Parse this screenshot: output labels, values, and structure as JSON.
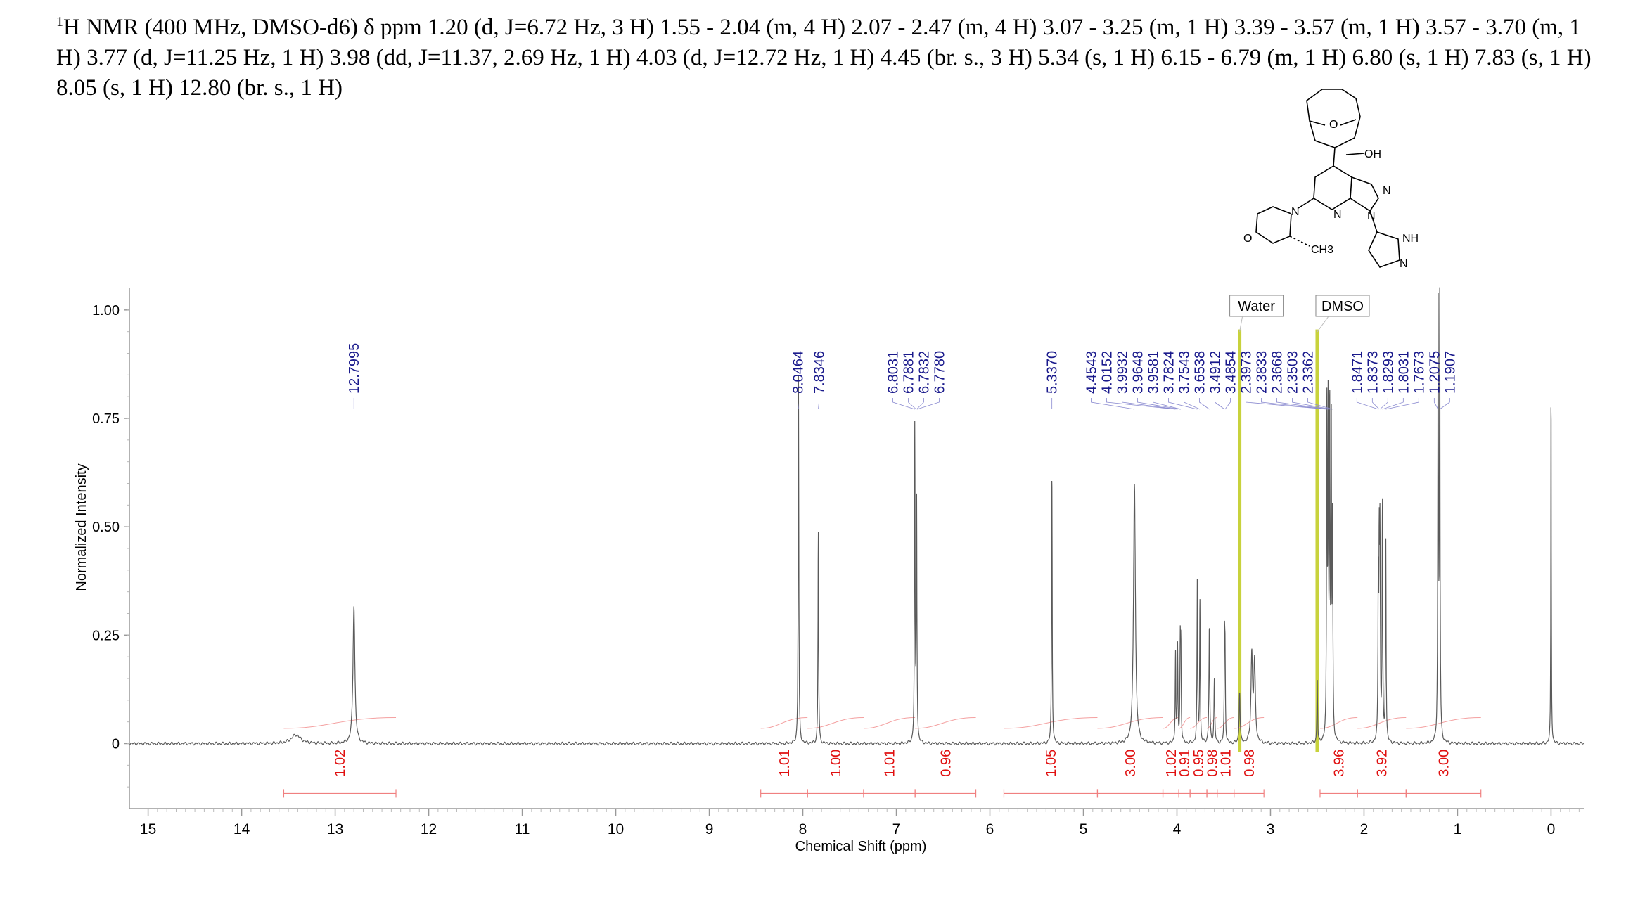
{
  "header": {
    "prefix_sup": "1",
    "text": "H NMR (400 MHz, DMSO-d6) δ ppm 1.20 (d, J=6.72 Hz, 3 H) 1.55 - 2.04 (m, 4 H) 2.07 - 2.47 (m, 4 H) 3.07 - 3.25 (m, 1 H) 3.39 - 3.57 (m, 1 H) 3.57 - 3.70 (m, 1 H) 3.77 (d, J=11.25 Hz, 1 H) 3.98 (dd, J=11.37, 2.69 Hz, 1 H) 4.03 (d, J=12.72 Hz, 1 H) 4.45 (br. s., 3 H) 5.34 (s, 1 H) 6.15 - 6.79 (m, 1 H) 6.80 (s, 1 H) 7.83 (s, 1 H) 8.05 (s, 1 H) 12.80 (br. s., 1 H)"
  },
  "structure_labels": {
    "o_top": "O",
    "oh": "OH",
    "n1": "N",
    "n2": "N",
    "n3": "N",
    "n4": "N",
    "nh": "NH",
    "n5": "N",
    "o_morph": "O",
    "ch3": "CH3"
  },
  "solvent_labels": [
    "Water",
    "DMSO"
  ],
  "chart_data": {
    "type": "line",
    "xlabel": "Chemical Shift (ppm)",
    "ylabel": "Normalized Intensity",
    "xlim": [
      15.2,
      -0.35
    ],
    "ylim": [
      -0.15,
      1.05
    ],
    "x_ticks": [
      "15",
      "14",
      "13",
      "12",
      "11",
      "10",
      "9",
      "8",
      "7",
      "6",
      "5",
      "4",
      "3",
      "2",
      "1",
      "0"
    ],
    "y_ticks": [
      "0",
      "0.25",
      "0.50",
      "0.75",
      "1.00"
    ],
    "peak_labels": [
      "12.7995",
      "8.0464",
      "7.8346",
      "6.8031",
      "6.7881",
      "6.7832",
      "6.7780",
      "5.3370",
      "4.4543",
      "4.0152",
      "3.9932",
      "3.9648",
      "3.9581",
      "3.7824",
      "3.7543",
      "3.6538",
      "3.4912",
      "3.4854",
      "2.3973",
      "2.3833",
      "2.3668",
      "2.3503",
      "2.3362",
      "1.8471",
      "1.8373",
      "1.8293",
      "1.8031",
      "1.7673",
      "1.2075",
      "1.1907"
    ],
    "peaks": [
      {
        "ppm": 13.42,
        "height": 0.02,
        "width": 0.06
      },
      {
        "ppm": 12.7995,
        "height": 0.32,
        "width": 0.012
      },
      {
        "ppm": 8.0464,
        "height": 0.86,
        "width": 0.004
      },
      {
        "ppm": 7.8346,
        "height": 0.49,
        "width": 0.004
      },
      {
        "ppm": 6.8031,
        "height": 0.72,
        "width": 0.004
      },
      {
        "ppm": 6.7832,
        "height": 0.55,
        "width": 0.004
      },
      {
        "ppm": 5.337,
        "height": 0.63,
        "width": 0.004
      },
      {
        "ppm": 4.4543,
        "height": 0.6,
        "width": 0.012
      },
      {
        "ppm": 4.0152,
        "height": 0.21,
        "width": 0.004
      },
      {
        "ppm": 3.9932,
        "height": 0.22,
        "width": 0.004
      },
      {
        "ppm": 3.9648,
        "height": 0.21,
        "width": 0.004
      },
      {
        "ppm": 3.9581,
        "height": 0.2,
        "width": 0.004
      },
      {
        "ppm": 3.7824,
        "height": 0.37,
        "width": 0.004
      },
      {
        "ppm": 3.7543,
        "height": 0.33,
        "width": 0.004
      },
      {
        "ppm": 3.6538,
        "height": 0.27,
        "width": 0.005
      },
      {
        "ppm": 3.6,
        "height": 0.15,
        "width": 0.005
      },
      {
        "ppm": 3.4912,
        "height": 0.22,
        "width": 0.004
      },
      {
        "ppm": 3.4854,
        "height": 0.18,
        "width": 0.004
      },
      {
        "ppm": 3.33,
        "height": 0.12,
        "width": 0.006
      },
      {
        "ppm": 3.2,
        "height": 0.2,
        "width": 0.01
      },
      {
        "ppm": 3.17,
        "height": 0.18,
        "width": 0.01
      },
      {
        "ppm": 2.5,
        "height": 0.15,
        "width": 0.004
      },
      {
        "ppm": 2.3973,
        "height": 0.76,
        "width": 0.004
      },
      {
        "ppm": 2.3833,
        "height": 0.75,
        "width": 0.004
      },
      {
        "ppm": 2.3668,
        "height": 0.74,
        "width": 0.004
      },
      {
        "ppm": 2.3503,
        "height": 0.7,
        "width": 0.004
      },
      {
        "ppm": 2.3362,
        "height": 0.5,
        "width": 0.004
      },
      {
        "ppm": 1.8471,
        "height": 0.36,
        "width": 0.004
      },
      {
        "ppm": 1.8373,
        "height": 0.4,
        "width": 0.004
      },
      {
        "ppm": 1.8293,
        "height": 0.44,
        "width": 0.004
      },
      {
        "ppm": 1.8031,
        "height": 0.55,
        "width": 0.004
      },
      {
        "ppm": 1.7673,
        "height": 0.48,
        "width": 0.004
      },
      {
        "ppm": 1.2075,
        "height": 1.01,
        "width": 0.004
      },
      {
        "ppm": 1.1907,
        "height": 1.0,
        "width": 0.004
      },
      {
        "ppm": 0.0,
        "height": 0.83,
        "width": 0.003
      }
    ],
    "integrals": [
      {
        "value": "1.02",
        "from": 13.55,
        "to": 12.35
      },
      {
        "value": "1.01",
        "from": 8.45,
        "to": 7.95
      },
      {
        "value": "1.00",
        "from": 7.95,
        "to": 7.35
      },
      {
        "value": "1.01",
        "from": 7.35,
        "to": 6.8
      },
      {
        "value": "0.96",
        "from": 6.8,
        "to": 6.15
      },
      {
        "value": "1.05",
        "from": 5.85,
        "to": 4.85
      },
      {
        "value": "3.00",
        "from": 4.85,
        "to": 4.15
      },
      {
        "value": "1.02",
        "from": 4.15,
        "to": 3.98
      },
      {
        "value": "0.91",
        "from": 3.98,
        "to": 3.86
      },
      {
        "value": "0.95",
        "from": 3.86,
        "to": 3.68
      },
      {
        "value": "0.98",
        "from": 3.68,
        "to": 3.57
      },
      {
        "value": "1.01",
        "from": 3.57,
        "to": 3.39
      },
      {
        "value": "0.98",
        "from": 3.39,
        "to": 3.07
      },
      {
        "value": "3.96",
        "from": 2.47,
        "to": 2.07
      },
      {
        "value": "3.92",
        "from": 2.07,
        "to": 1.55
      },
      {
        "value": "3.00",
        "from": 1.55,
        "to": 0.75
      }
    ],
    "solvent_bands": [
      {
        "label": "Water",
        "ppm": 3.33
      },
      {
        "label": "DMSO",
        "ppm": 2.5
      }
    ],
    "colors": {
      "spectrum": "#5a5a5a",
      "integral": "#e01010",
      "peak_label": "#1a1a8c",
      "solvent": "#c8d23c"
    }
  }
}
